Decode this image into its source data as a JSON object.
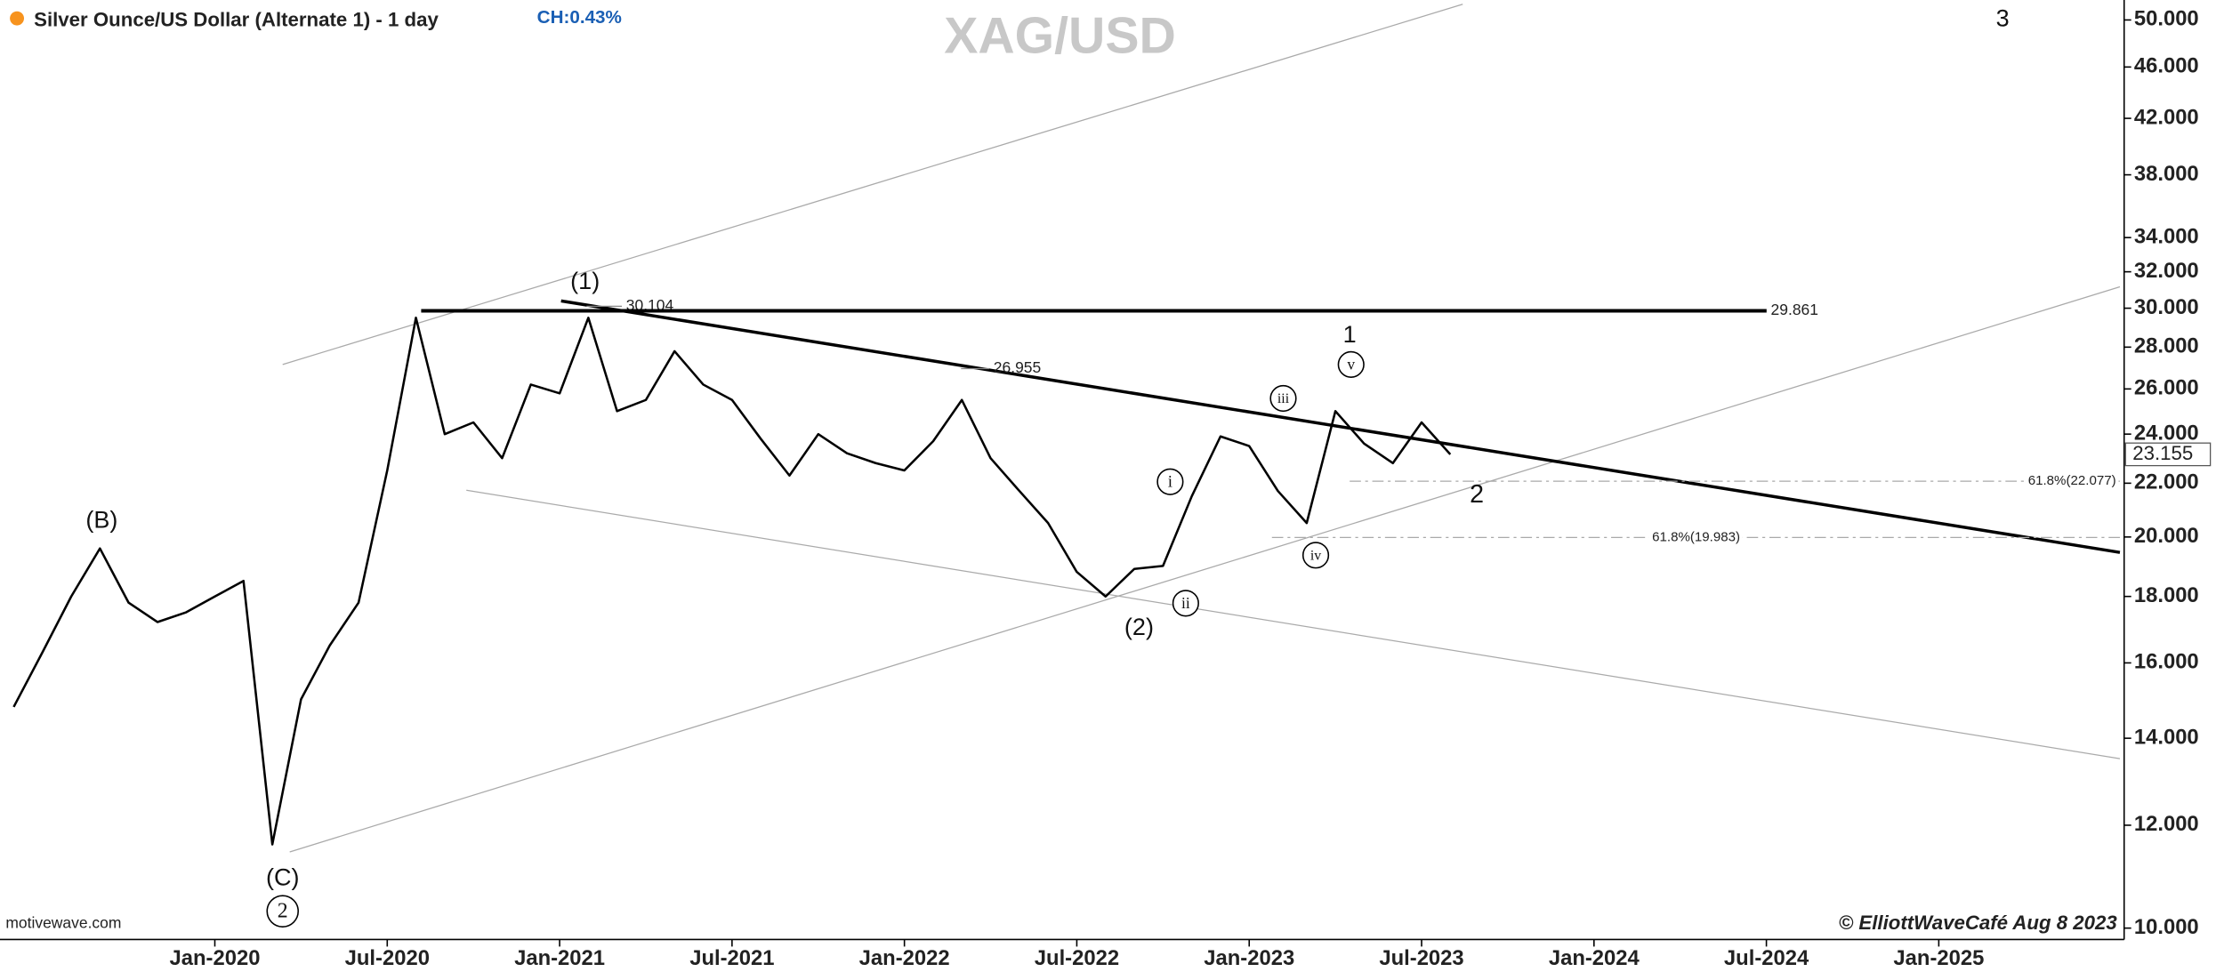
{
  "chart_data": {
    "type": "line",
    "title": "Silver Ounce/US Dollar (Alternate 1) - 1 day",
    "change": "CH:0.43%",
    "watermark": "XAG/USD",
    "source": "motivewave.com",
    "credit": "© ElliottWaveCafé Aug 8 2023",
    "log_scale": true,
    "grid": false,
    "x": [
      "2019-06",
      "2019-07",
      "2019-08",
      "2019-09",
      "2019-10",
      "2019-11",
      "2019-12",
      "2020-01",
      "2020-02",
      "2020-03",
      "2020-04",
      "2020-05",
      "2020-06",
      "2020-07",
      "2020-08",
      "2020-09",
      "2020-10",
      "2020-11",
      "2020-12",
      "2021-01",
      "2021-02",
      "2021-03",
      "2021-04",
      "2021-05",
      "2021-06",
      "2021-07",
      "2021-08",
      "2021-09",
      "2021-10",
      "2021-11",
      "2021-12",
      "2022-01",
      "2022-02",
      "2022-03",
      "2022-04",
      "2022-05",
      "2022-06",
      "2022-07",
      "2022-08",
      "2022-09",
      "2022-10",
      "2022-11",
      "2022-12",
      "2023-01",
      "2023-02",
      "2023-03",
      "2023-04",
      "2023-05",
      "2023-06",
      "2023-07",
      "2023-08"
    ],
    "series": [
      {
        "name": "XAG/USD",
        "color": "#000000",
        "values": [
          14.8,
          16.3,
          18.0,
          19.6,
          17.8,
          17.2,
          17.5,
          18.0,
          18.5,
          11.6,
          15.0,
          16.5,
          17.8,
          22.5,
          29.5,
          24.0,
          24.5,
          23.0,
          26.2,
          25.8,
          29.5,
          25.0,
          25.5,
          27.8,
          26.2,
          25.5,
          23.8,
          22.3,
          24.0,
          23.2,
          22.8,
          22.5,
          23.7,
          25.5,
          23.0,
          21.7,
          20.5,
          18.8,
          18.0,
          18.9,
          19.0,
          21.5,
          23.9,
          23.5,
          21.7,
          20.5,
          25.0,
          23.6,
          22.8,
          24.5,
          23.155
        ]
      }
    ],
    "last_price": 23.155,
    "xlim": [
      "2019-06",
      "2025-06"
    ],
    "xticks": [
      {
        "value": "2020-01",
        "label": "Jan-2020"
      },
      {
        "value": "2020-07",
        "label": "Jul-2020"
      },
      {
        "value": "2021-01",
        "label": "Jan-2021"
      },
      {
        "value": "2021-07",
        "label": "Jul-2021"
      },
      {
        "value": "2022-01",
        "label": "Jan-2022"
      },
      {
        "value": "2022-07",
        "label": "Jul-2022"
      },
      {
        "value": "2023-01",
        "label": "Jan-2023"
      },
      {
        "value": "2023-07",
        "label": "Jul-2023"
      },
      {
        "value": "2024-01",
        "label": "Jan-2024"
      },
      {
        "value": "2024-07",
        "label": "Jul-2024"
      },
      {
        "value": "2025-01",
        "label": "Jan-2025"
      }
    ],
    "ylim": [
      9.8,
      51.8
    ],
    "yticks": [
      {
        "value": 10,
        "label": "10.000"
      },
      {
        "value": 12,
        "label": "12.000"
      },
      {
        "value": 14,
        "label": "14.000"
      },
      {
        "value": 16,
        "label": "16.000"
      },
      {
        "value": 18,
        "label": "18.000"
      },
      {
        "value": 20,
        "label": "20.000"
      },
      {
        "value": 22,
        "label": "22.000"
      },
      {
        "value": 24,
        "label": "24.000"
      },
      {
        "value": 26,
        "label": "26.000"
      },
      {
        "value": 28,
        "label": "28.000"
      },
      {
        "value": 30,
        "label": "30.000"
      },
      {
        "value": 32,
        "label": "32.000"
      },
      {
        "value": 34,
        "label": "34.000"
      },
      {
        "value": 38,
        "label": "38.000"
      },
      {
        "value": 42,
        "label": "42.000"
      },
      {
        "value": 46,
        "label": "46.000"
      },
      {
        "value": 50,
        "label": "50.000"
      }
    ],
    "price_levels": [
      30.104,
      26.955,
      29.861
    ],
    "fib_levels": [
      {
        "value": 22.077,
        "label": "61.8%(22.077)"
      },
      {
        "value": 19.983,
        "label": "61.8%(19.983)"
      }
    ],
    "wave_labels": [
      "(B)",
      "(C)",
      "2",
      "(1)",
      "(2)",
      "i",
      "ii",
      "iii",
      "iv",
      "v",
      "1",
      "2",
      "3"
    ]
  }
}
